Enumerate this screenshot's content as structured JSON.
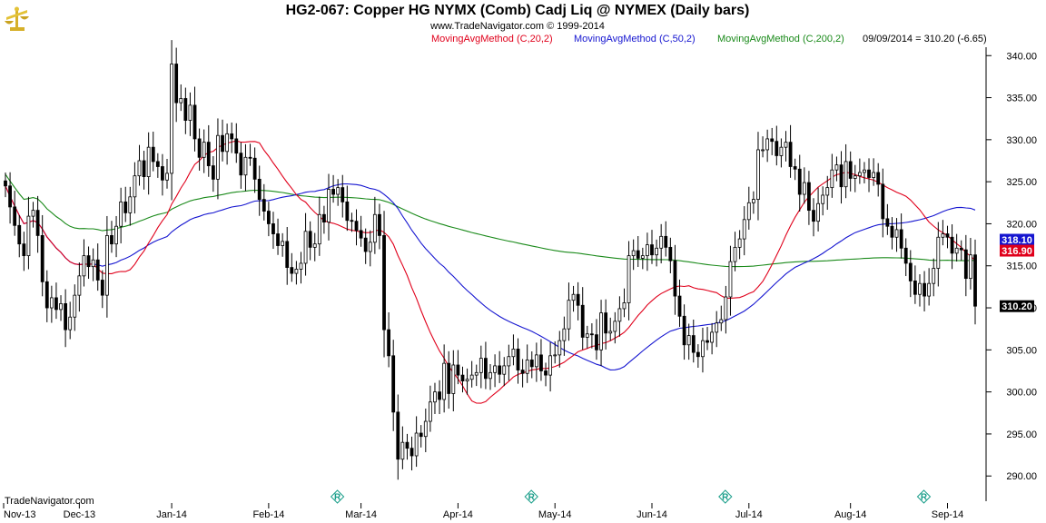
{
  "header": {
    "title": "HG2-067:  Copper HG NYMX (Comb) Cadj Liq @ NYMEX  (Daily bars)",
    "subtitle": "www.TradeNavigator.com © 1999-2014"
  },
  "legend": [
    {
      "label": "MovingAvgMethod (C,20,2)",
      "color": "#e0001b"
    },
    {
      "label": "MovingAvgMethod (C,50,2)",
      "color": "#1515d0"
    },
    {
      "label": "MovingAvgMethod (C,200,2)",
      "color": "#1a8a1a"
    }
  ],
  "last_quote": "09/09/2014 = 310.20 (-6.65)",
  "footer": "TradeNavigator.com",
  "logo_icon": "scales-icon",
  "colors": {
    "price_bars": "#000000",
    "ma20": "#e0001b",
    "ma50": "#1515d0",
    "ma200": "#1a8a1a",
    "roll_marker": "#1a9e8a"
  },
  "chart_data": {
    "type": "candlestick",
    "title": "HG2-067:  Copper HG NYMX (Comb) Cadj Liq @ NYMEX  (Daily bars)",
    "ylim": [
      287,
      341
    ],
    "y_ticks": [
      "340.00",
      "335.00",
      "330.00",
      "325.00",
      "320.00",
      "315.00",
      "310.00",
      "305.00",
      "300.00",
      "295.00",
      "290.00"
    ],
    "x_ticks": [
      "Nov-13",
      "Dec-13",
      "Jan-14",
      "Feb-14",
      "Mar-14",
      "Apr-14",
      "May-14",
      "Jun-14",
      "Jul-14",
      "Aug-14",
      "Sep-14"
    ],
    "value_badges": [
      {
        "label": "318.10",
        "value": 318.1,
        "bg": "#1515d0"
      },
      {
        "label": "316.90",
        "value": 316.9,
        "bg": "#e0001b"
      },
      {
        "label": "310.20",
        "value": 310.2,
        "bg": "#000000"
      }
    ],
    "roll_markers": [
      "Mar-14",
      "May-14",
      "Jul-14",
      "Sep-14"
    ],
    "month_bars": [
      {
        "month": "Nov-13",
        "closes": [
          324.5,
          322.0,
          319.8,
          317.6,
          316.2,
          320.9,
          321.6,
          318.6,
          313.1,
          310.0,
          311.2,
          309.8,
          310.5,
          307.4,
          308.9,
          311.5
        ]
      },
      {
        "month": "Dec-13",
        "closes": [
          313.8,
          316.2,
          314.9,
          315.7,
          313.3,
          311.5,
          318.6,
          317.6,
          319.7,
          322.6,
          321.3,
          323.2,
          325.7,
          327.5,
          325.6,
          329.1,
          327.4,
          326.8,
          325.2,
          326.0
        ]
      },
      {
        "month": "Jan-14",
        "closes": [
          339.0,
          334.4,
          334.9,
          332.3,
          334.1,
          330.1,
          327.9,
          329.7,
          326.9,
          325.3,
          330.5,
          328.6,
          330.7,
          330.1,
          328.4,
          325.8,
          327.9,
          327.8,
          325.3,
          322.9,
          321.5
        ]
      },
      {
        "month": "Feb-14",
        "closes": [
          320.0,
          318.8,
          317.4,
          317.9,
          314.8,
          314.1,
          314.6,
          315.3,
          319.1,
          317.2,
          317.6,
          321.1,
          320.2,
          324.1,
          323.5,
          324.3,
          322.6,
          320.4,
          320.3,
          319.2
        ]
      },
      {
        "month": "Mar-14",
        "closes": [
          318.3,
          316.7,
          317.8,
          321.1,
          318.6,
          307.4,
          304.3,
          297.6,
          292.0,
          294.0,
          293.3,
          292.4,
          295.1,
          294.7,
          296.5,
          298.8,
          300.0,
          299.1,
          303.4,
          299.8,
          303.2
        ]
      },
      {
        "month": "Apr-14",
        "closes": [
          302.0,
          301.3,
          301.5,
          302.0,
          302.3,
          304.0,
          301.6,
          302.3,
          303.1,
          302.1,
          303.1,
          304.2,
          305.1,
          302.6,
          302.2,
          303.8,
          303.0,
          304.4,
          302.5,
          302.0,
          304.3
        ]
      },
      {
        "month": "May-14",
        "closes": [
          304.4,
          306.1,
          307.5,
          310.9,
          311.6,
          310.3,
          306.5,
          306.9,
          306.8,
          305.0,
          309.4,
          307.0,
          307.2,
          308.4,
          309.9,
          310.6,
          316.2,
          316.8,
          315.9,
          316.2,
          317.5
        ]
      },
      {
        "month": "Jun-14",
        "closes": [
          316.3,
          317.1,
          318.5,
          317.2,
          315.6,
          311.4,
          309.0,
          305.6,
          306.7,
          304.7,
          304.2,
          306.1,
          305.9,
          307.1,
          308.2,
          308.6,
          311.3,
          315.5,
          317.2,
          318.2,
          320.5
        ]
      },
      {
        "month": "Jul-14",
        "closes": [
          322.5,
          322.9,
          328.8,
          328.8,
          330.1,
          329.8,
          328.1,
          329.1,
          329.7,
          326.8,
          326.5,
          323.5,
          324.9,
          321.6,
          320.3,
          322.4,
          323.4,
          324.3,
          326.4,
          327.0,
          324.4,
          327.4
        ]
      },
      {
        "month": "Aug-14",
        "closes": [
          325.4,
          325.7,
          326.1,
          326.4,
          325.5,
          326.1,
          324.7,
          320.6,
          319.7,
          318.4,
          319.3,
          317.1,
          315.3,
          313.2,
          311.6,
          312.9,
          311.4,
          312.9,
          314.7,
          318.4,
          318.8
        ]
      },
      {
        "month": "Sep-14",
        "closes": [
          318.4,
          316.5,
          317.1,
          316.9,
          313.5,
          316.3,
          310.2
        ]
      }
    ]
  }
}
